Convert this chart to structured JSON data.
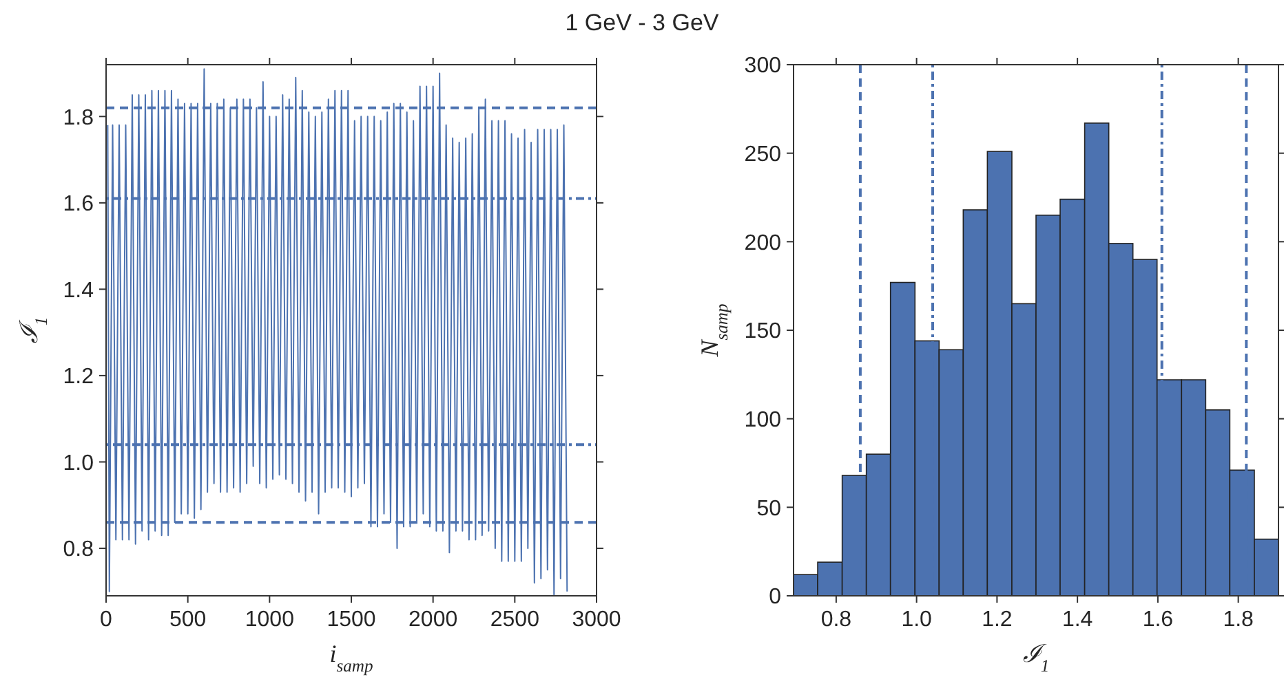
{
  "chart_data": [
    {
      "type": "line",
      "title": "1 GeV - 3 GeV",
      "xlabel": "i$_{samp}$",
      "ylabel": "ℐ$_{1}$",
      "grid": false,
      "marker": "none",
      "line_style": "solid",
      "xlim": [
        0,
        3000
      ],
      "xticks": [
        0,
        500,
        1000,
        1500,
        2000,
        2500,
        3000
      ],
      "ylim": [
        0.69,
        1.92
      ],
      "yticks": [
        {
          "value": 0.8,
          "label": "0.8"
        },
        {
          "value": 1,
          "label": "1.0"
        },
        {
          "value": 1.2,
          "label": "1.2"
        },
        {
          "value": 1.4,
          "label": "1.4"
        },
        {
          "value": 1.6,
          "label": "1.6"
        },
        {
          "value": 1.8,
          "label": "1.8"
        }
      ],
      "ref_lines": [
        {
          "axis": "y",
          "value": 0.86,
          "line_style": "dashed",
          "color": "#4c72b0"
        },
        {
          "axis": "y",
          "value": 1.82,
          "line_style": "dashed",
          "color": "#4c72b0"
        },
        {
          "axis": "y",
          "value": 1.04,
          "line_style": "dotted",
          "color": "#4c72b0"
        },
        {
          "axis": "y",
          "value": 1.61,
          "line_style": "dotted",
          "color": "#4c72b0"
        }
      ],
      "series": [
        {
          "color": "#4c72b0",
          "x": [
            10,
            20,
            40,
            60,
            80,
            100,
            120,
            140,
            160,
            180,
            200,
            220,
            240,
            260,
            280,
            300,
            320,
            340,
            360,
            380,
            400,
            420,
            440,
            460,
            480,
            500,
            520,
            540,
            560,
            580,
            600,
            620,
            640,
            660,
            680,
            700,
            720,
            740,
            760,
            780,
            800,
            820,
            840,
            860,
            880,
            900,
            920,
            940,
            960,
            980,
            1000,
            1020,
            1040,
            1060,
            1080,
            1100,
            1120,
            1140,
            1160,
            1180,
            1200,
            1220,
            1240,
            1260,
            1280,
            1300,
            1320,
            1340,
            1360,
            1380,
            1400,
            1420,
            1440,
            1460,
            1480,
            1500,
            1520,
            1540,
            1560,
            1580,
            1600,
            1620,
            1640,
            1660,
            1680,
            1700,
            1720,
            1740,
            1760,
            1780,
            1800,
            1820,
            1840,
            1860,
            1880,
            1900,
            1920,
            1940,
            1960,
            1980,
            2000,
            2020,
            2040,
            2060,
            2080,
            2100,
            2120,
            2140,
            2160,
            2180,
            2200,
            2220,
            2240,
            2260,
            2280,
            2300,
            2320,
            2340,
            2360,
            2380,
            2400,
            2420,
            2440,
            2460,
            2480,
            2500,
            2520,
            2540,
            2560,
            2580,
            2600,
            2620,
            2640,
            2660,
            2680,
            2700,
            2720,
            2740,
            2760,
            2780,
            2800,
            2820
          ],
          "values": [
            1.78,
            0.7,
            1.78,
            0.82,
            1.78,
            0.82,
            1.78,
            0.82,
            1.85,
            0.81,
            1.85,
            0.84,
            1.85,
            0.82,
            1.86,
            0.84,
            1.86,
            0.83,
            1.86,
            0.83,
            1.86,
            0.86,
            1.84,
            0.88,
            1.83,
            0.88,
            1.83,
            0.87,
            1.83,
            0.89,
            1.91,
            0.93,
            1.83,
            0.95,
            1.83,
            0.93,
            1.84,
            0.93,
            1.82,
            0.94,
            1.84,
            0.93,
            1.84,
            0.95,
            1.84,
            0.99,
            1.82,
            0.95,
            1.88,
            0.94,
            1.8,
            0.96,
            1.8,
            0.97,
            1.85,
            0.96,
            1.84,
            0.95,
            1.89,
            0.93,
            1.86,
            0.91,
            1.81,
            0.93,
            1.8,
            0.88,
            1.81,
            0.93,
            1.84,
            0.94,
            1.86,
            0.94,
            1.86,
            0.93,
            1.86,
            0.92,
            1.79,
            0.94,
            1.8,
            0.95,
            1.8,
            0.85,
            1.8,
            0.85,
            1.79,
            0.88,
            1.81,
            0.86,
            1.83,
            0.8,
            1.83,
            0.85,
            1.81,
            0.85,
            1.79,
            0.86,
            1.87,
            0.88,
            1.87,
            0.85,
            1.87,
            0.84,
            1.9,
            0.84,
            1.78,
            0.79,
            1.75,
            0.84,
            1.74,
            0.84,
            1.75,
            0.82,
            1.76,
            0.82,
            1.82,
            0.83,
            1.84,
            0.84,
            1.79,
            0.8,
            1.79,
            0.77,
            1.79,
            0.77,
            1.76,
            0.77,
            1.75,
            0.77,
            1.77,
            0.8,
            1.74,
            0.72,
            1.77,
            0.73,
            1.77,
            0.75,
            1.77,
            0.69,
            1.77,
            0.73,
            1.78,
            0.7
          ]
        }
      ]
    },
    {
      "type": "histogram",
      "xlabel": "ℐ$_{1}$",
      "ylabel": "N$_{samp}$",
      "grid": false,
      "color": "#4c72b0",
      "bins": [
        0.694,
        0.754,
        0.815,
        0.875,
        0.935,
        0.996,
        1.056,
        1.116,
        1.176,
        1.237,
        1.297,
        1.357,
        1.418,
        1.478,
        1.538,
        1.598,
        1.659,
        1.719,
        1.779,
        1.84,
        1.9
      ],
      "values": [
        12,
        19,
        68,
        80,
        177,
        144,
        139,
        218,
        251,
        165,
        215,
        224,
        267,
        199,
        190,
        122,
        122,
        105,
        71,
        32
      ],
      "xlim": [
        0.694,
        1.9
      ],
      "xticks": [
        {
          "value": 0.8,
          "label": "0.8"
        },
        {
          "value": 1,
          "label": "1.0"
        },
        {
          "value": 1.2,
          "label": "1.2"
        },
        {
          "value": 1.4,
          "label": "1.4"
        },
        {
          "value": 1.6,
          "label": "1.6"
        },
        {
          "value": 1.8,
          "label": "1.8"
        }
      ],
      "ylim": [
        0,
        300
      ],
      "yticks": [
        0,
        50,
        100,
        150,
        200,
        250,
        300
      ],
      "ref_lines": [
        {
          "axis": "x",
          "value": 0.86,
          "line_style": "dashed",
          "color": "#4c72b0"
        },
        {
          "axis": "x",
          "value": 1.82,
          "line_style": "dashed",
          "color": "#4c72b0"
        },
        {
          "axis": "x",
          "value": 1.04,
          "line_style": "dotted",
          "color": "#4c72b0"
        },
        {
          "axis": "x",
          "value": 1.61,
          "line_style": "dotted",
          "color": "#4c72b0"
        }
      ]
    }
  ]
}
